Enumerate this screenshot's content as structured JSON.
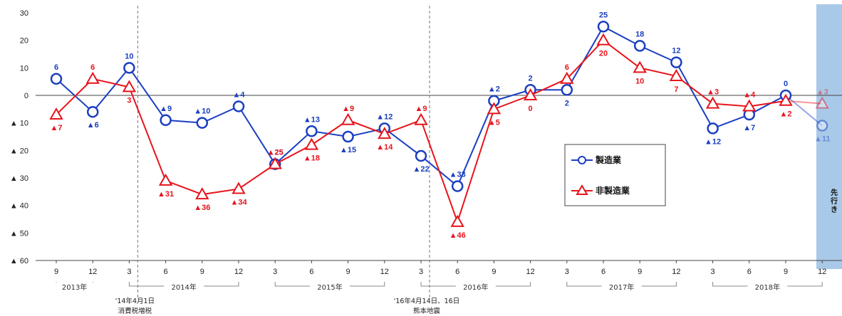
{
  "chart_data": {
    "type": "line",
    "categories": [
      "9",
      "12",
      "3",
      "6",
      "9",
      "12",
      "3",
      "6",
      "9",
      "12",
      "3",
      "6",
      "9",
      "12",
      "3",
      "6",
      "9",
      "12",
      "3",
      "6",
      "9",
      "12"
    ],
    "category_years": [
      "2013",
      "2013",
      "2014",
      "2014",
      "2014",
      "2014",
      "2015",
      "2015",
      "2015",
      "2015",
      "2016",
      "2016",
      "2016",
      "2016",
      "2017",
      "2017",
      "2017",
      "2017",
      "2018",
      "2018",
      "2018",
      "2018"
    ],
    "ylim": [
      -60,
      30
    ],
    "yticks": [
      30,
      20,
      10,
      0,
      -10,
      -20,
      -30,
      -40,
      -50,
      -60
    ],
    "ytick_labels": [
      "30",
      "20",
      "10",
      "0",
      "▲ 10",
      "▲ 20",
      "▲ 30",
      "▲ 40",
      "▲ 50",
      "▲ 60"
    ],
    "series": [
      {
        "name": "製造業",
        "color": "#1a3fc0",
        "marker": "circle",
        "values": [
          6,
          -6,
          10,
          -9,
          -10,
          -4,
          -25,
          -13,
          -15,
          -12,
          -22,
          -33,
          -2,
          2,
          2,
          25,
          18,
          12,
          -12,
          -7,
          0,
          -11
        ],
        "labels": [
          "6",
          "▲6",
          "10",
          "▲9",
          "▲10",
          "▲4",
          "▲25",
          "▲13",
          "▲15",
          "▲12",
          "▲22",
          "▲33",
          "▲2",
          "2",
          "2",
          "25",
          "18",
          "12",
          "▲12",
          "▲7",
          "0",
          "▲11"
        ]
      },
      {
        "name": "非製造業",
        "color": "#e8141c",
        "marker": "triangle",
        "values": [
          -7,
          6,
          3,
          -31,
          -36,
          -34,
          -25,
          -18,
          -9,
          -14,
          -9,
          -46,
          -5,
          0,
          6,
          20,
          10,
          7,
          -3,
          -4,
          -2,
          -3
        ],
        "labels": [
          "▲7",
          "6",
          "3",
          "▲31",
          "▲36",
          "▲34",
          "▲25",
          "▲18",
          "▲9",
          "▲14",
          "▲9",
          "▲46",
          "▲5",
          "0",
          "6",
          "20",
          "10",
          "7",
          "▲3",
          "▲4",
          "▲2",
          "▲3"
        ]
      }
    ],
    "forecast_label": "先行き",
    "year_groups": [
      {
        "label": "2013年",
        "start": 0,
        "end": 1
      },
      {
        "label": "2014年",
        "start": 2,
        "end": 5
      },
      {
        "label": "2015年",
        "start": 6,
        "end": 9
      },
      {
        "label": "2016年",
        "start": 10,
        "end": 13
      },
      {
        "label": "2017年",
        "start": 14,
        "end": 17
      },
      {
        "label": "2018年",
        "start": 18,
        "end": 21
      }
    ],
    "events": [
      {
        "line1": "'14年4月1日",
        "line2": "消費税増税",
        "after_index": 2
      },
      {
        "line1": "'16年4月14日、16日",
        "line2": "熊本地震",
        "after_index": 10
      }
    ],
    "legend_position": "center-right",
    "grid": false
  }
}
